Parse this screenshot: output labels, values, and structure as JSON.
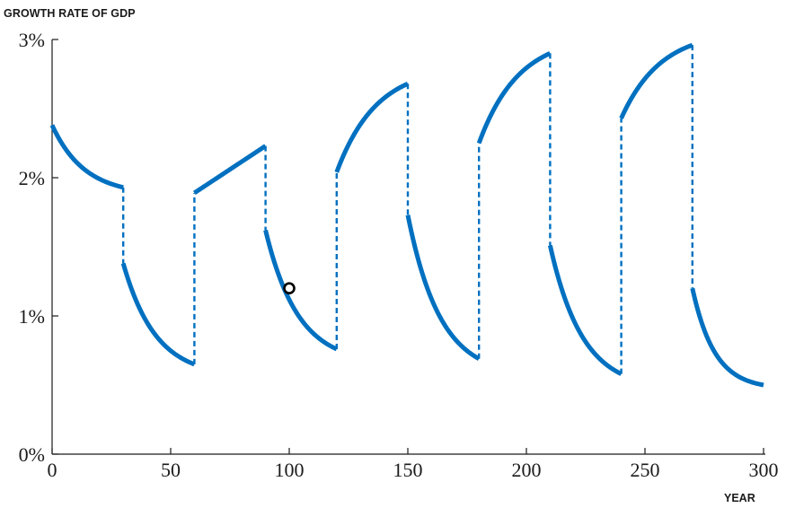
{
  "chart_data": {
    "type": "line",
    "ylabel": "GROWTH RATE OF GDP",
    "xlabel": "YEAR",
    "xlim": [
      0,
      300
    ],
    "ylim": [
      0,
      3
    ],
    "x_ticks": [
      "0",
      "50",
      "100",
      "150",
      "200",
      "250",
      "300"
    ],
    "y_ticks": [
      "0%",
      "1%",
      "2%",
      "3%"
    ],
    "grid": false,
    "line_color": "#0070c0",
    "marker_color": "#000000",
    "segments": [
      {
        "x0": 0,
        "x1": 30,
        "y_start": 2.38,
        "y_end": 1.93,
        "curve": "convex"
      },
      {
        "x0": 30,
        "x1": 60,
        "y_start": 1.38,
        "y_end": 0.65,
        "curve": "convex"
      },
      {
        "x0": 60,
        "x1": 90,
        "y_start": 1.89,
        "y_end": 2.23,
        "curve": "linear"
      },
      {
        "x0": 90,
        "x1": 120,
        "y_start": 1.62,
        "y_end": 0.76,
        "curve": "convex"
      },
      {
        "x0": 120,
        "x1": 150,
        "y_start": 2.04,
        "y_end": 2.68,
        "curve": "concave"
      },
      {
        "x0": 150,
        "x1": 180,
        "y_start": 1.73,
        "y_end": 0.69,
        "curve": "convex"
      },
      {
        "x0": 180,
        "x1": 210,
        "y_start": 2.25,
        "y_end": 2.9,
        "curve": "concave"
      },
      {
        "x0": 210,
        "x1": 240,
        "y_start": 1.51,
        "y_end": 0.58,
        "curve": "convex"
      },
      {
        "x0": 240,
        "x1": 270,
        "y_start": 2.43,
        "y_end": 2.96,
        "curve": "concave"
      },
      {
        "x0": 270,
        "x1": 300,
        "y_start": 1.2,
        "y_end": 0.5,
        "curve": "convex-steep"
      }
    ],
    "marker": {
      "x": 100,
      "y": 1.2
    }
  }
}
